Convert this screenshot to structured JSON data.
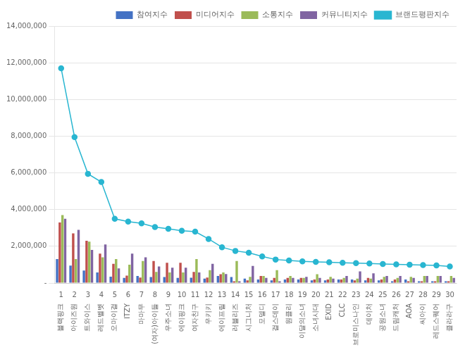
{
  "chart_data": {
    "type": "bar",
    "x": [
      1,
      2,
      3,
      4,
      5,
      6,
      7,
      8,
      9,
      10,
      11,
      12,
      13,
      14,
      15,
      16,
      17,
      18,
      19,
      20,
      21,
      22,
      23,
      24,
      25,
      26,
      27,
      28,
      29,
      30
    ],
    "categories": [
      "블랙핑크",
      "아이즈원",
      "트와이스",
      "레드벨벳",
      "오마이걸",
      "ITZY",
      "마마무",
      "(여자)아이들",
      "우주소녀",
      "에이핑크",
      "여자친구",
      "우키키",
      "에이프릴",
      "러블리즈",
      "시그니처",
      "모델디",
      "걸스데이",
      "원클리",
      "이달의소녀",
      "소녀시대",
      "EXID",
      "CLC",
      "브로미스나인",
      "데이처",
      "공원소녀",
      "드림캐처",
      "AOA",
      "씨아이",
      "레드스퀘어",
      "클라라구"
    ],
    "series": [
      {
        "name": "참여지수",
        "type": "bar",
        "color": "#4472C4",
        "values": [
          1300000,
          950000,
          680000,
          580000,
          350000,
          280000,
          380000,
          330000,
          330000,
          280000,
          290000,
          240000,
          380000,
          330000,
          240000,
          190000,
          140000,
          190000,
          190000,
          140000,
          140000,
          190000,
          190000,
          140000,
          140000,
          100000,
          190000,
          100000,
          100000,
          100000
        ]
      },
      {
        "name": "미디어지수",
        "type": "bar",
        "color": "#C0504D",
        "values": [
          3300000,
          2700000,
          2300000,
          1600000,
          1050000,
          400000,
          300000,
          1200000,
          1100000,
          1100000,
          600000,
          300000,
          480000,
          100000,
          140000,
          380000,
          280000,
          280000,
          280000,
          190000,
          190000,
          190000,
          140000,
          280000,
          190000,
          190000,
          100000,
          100000,
          100000,
          100000
        ]
      },
      {
        "name": "소통지수",
        "type": "bar",
        "color": "#9BBB59",
        "values": [
          3700000,
          1300000,
          2250000,
          1400000,
          1300000,
          1000000,
          1200000,
          600000,
          580000,
          580000,
          1300000,
          700000,
          580000,
          1200000,
          340000,
          380000,
          700000,
          380000,
          280000,
          480000,
          340000,
          280000,
          240000,
          240000,
          340000,
          280000,
          340000,
          380000,
          380000,
          380000
        ]
      },
      {
        "name": "커뮤니티지수",
        "type": "bar",
        "color": "#8064A2",
        "values": [
          3500000,
          2900000,
          1800000,
          2100000,
          800000,
          1600000,
          1400000,
          900000,
          830000,
          830000,
          580000,
          1050000,
          490000,
          100000,
          930000,
          280000,
          100000,
          280000,
          340000,
          280000,
          240000,
          380000,
          630000,
          530000,
          380000,
          380000,
          280000,
          380000,
          380000,
          280000
        ]
      },
      {
        "name": "브랜드평판지수",
        "type": "line",
        "color": "#29B6D1",
        "marker": "circle",
        "values": [
          11700000,
          7950000,
          5950000,
          5500000,
          3500000,
          3350000,
          3250000,
          3050000,
          2950000,
          2850000,
          2800000,
          2400000,
          1950000,
          1750000,
          1650000,
          1450000,
          1280000,
          1230000,
          1180000,
          1150000,
          1130000,
          1100000,
          1080000,
          1060000,
          1040000,
          1020000,
          1000000,
          980000,
          960000,
          900000
        ]
      }
    ],
    "ylim": [
      0,
      14000000
    ],
    "yticks": [
      {
        "value": 0,
        "label": "-"
      },
      {
        "value": 2000000,
        "label": "2,000,000"
      },
      {
        "value": 4000000,
        "label": "4,000,000"
      },
      {
        "value": 6000000,
        "label": "6,000,000"
      },
      {
        "value": 8000000,
        "label": "8,000,000"
      },
      {
        "value": 10000000,
        "label": "10,000,000"
      },
      {
        "value": 12000000,
        "label": "12,000,000"
      },
      {
        "value": 14000000,
        "label": "14,000,000"
      }
    ],
    "grid": "y",
    "legend": "upper right"
  }
}
